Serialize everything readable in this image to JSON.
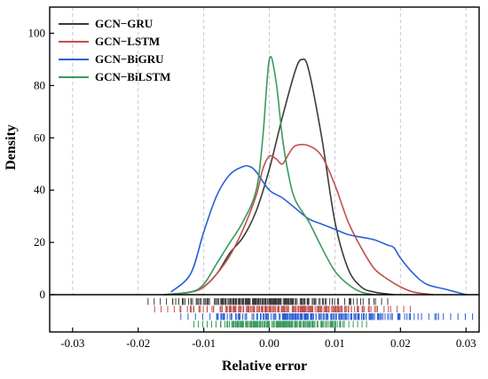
{
  "chart_data": {
    "type": "line",
    "xlabel": "Relative error",
    "ylabel": "Density",
    "xlim": [
      -0.0335,
      0.032
    ],
    "ylim": [
      0,
      110
    ],
    "x_ticks": [
      -0.03,
      -0.02,
      -0.01,
      0.0,
      0.01,
      0.02,
      0.03
    ],
    "x_tick_labels": [
      "-0.03",
      "-0.02",
      "-0.01",
      "0.00",
      "0.01",
      "0.02",
      "0.03"
    ],
    "y_ticks": [
      0,
      20,
      40,
      60,
      80,
      100
    ],
    "y_tick_labels": [
      "0",
      "20",
      "40",
      "60",
      "80",
      "100"
    ],
    "grid": "vertical dashed",
    "legend_position": "top-left",
    "series": [
      {
        "name": "GCN−GRU",
        "color": "#3b3b3b",
        "x": [
          -0.016,
          -0.012,
          -0.01,
          -0.008,
          -0.006,
          -0.004,
          -0.002,
          0.0,
          0.002,
          0.004,
          0.005,
          0.006,
          0.008,
          0.01,
          0.012,
          0.014,
          0.016,
          0.019
        ],
        "y": [
          0,
          1,
          3,
          8,
          16,
          22,
          32,
          48,
          68,
          86,
          90,
          86,
          60,
          28,
          10,
          3,
          1,
          0
        ],
        "rug": {
          "row": 0,
          "x_range": [
            -0.0185,
            0.019
          ]
        }
      },
      {
        "name": "GCN−LSTM",
        "color": "#c0504d",
        "x": [
          -0.016,
          -0.012,
          -0.01,
          -0.008,
          -0.006,
          -0.004,
          -0.002,
          -0.001,
          0.0,
          0.001,
          0.002,
          0.003,
          0.004,
          0.006,
          0.008,
          0.01,
          0.012,
          0.014,
          0.016,
          0.018,
          0.02,
          0.022,
          0.025
        ],
        "y": [
          0,
          1,
          3,
          8,
          15,
          25,
          38,
          48,
          53,
          52,
          50,
          54,
          57,
          57,
          53,
          42,
          28,
          18,
          10,
          6,
          3,
          1,
          0
        ],
        "rug": {
          "row": 1,
          "x_range": [
            -0.0175,
            0.0225
          ]
        }
      },
      {
        "name": "GCN−BiGRU",
        "color": "#2a5fd6",
        "x": [
          -0.015,
          -0.012,
          -0.01,
          -0.008,
          -0.006,
          -0.004,
          -0.003,
          -0.002,
          0.0,
          0.002,
          0.004,
          0.006,
          0.008,
          0.01,
          0.012,
          0.014,
          0.016,
          0.018,
          0.019,
          0.02,
          0.022,
          0.024,
          0.027,
          0.03
        ],
        "y": [
          1,
          8,
          24,
          38,
          46,
          49,
          49,
          47,
          40,
          37,
          33,
          29,
          27,
          25,
          23,
          22,
          21,
          19,
          18,
          14,
          8,
          4,
          2,
          0
        ],
        "rug": {
          "row": 2,
          "x_range": [
            -0.0135,
            0.031
          ]
        }
      },
      {
        "name": "GCN−BiLSTM",
        "color": "#3a9a5c",
        "x": [
          -0.016,
          -0.012,
          -0.01,
          -0.008,
          -0.006,
          -0.004,
          -0.002,
          -0.001,
          0.0,
          0.001,
          0.002,
          0.003,
          0.004,
          0.006,
          0.008,
          0.01,
          0.012,
          0.014,
          0.016
        ],
        "y": [
          0,
          1,
          4,
          12,
          20,
          28,
          40,
          60,
          90,
          82,
          60,
          45,
          36,
          28,
          18,
          9,
          4,
          1,
          0
        ],
        "rug": {
          "row": 3,
          "x_range": [
            -0.0115,
            0.0155
          ]
        }
      }
    ]
  }
}
